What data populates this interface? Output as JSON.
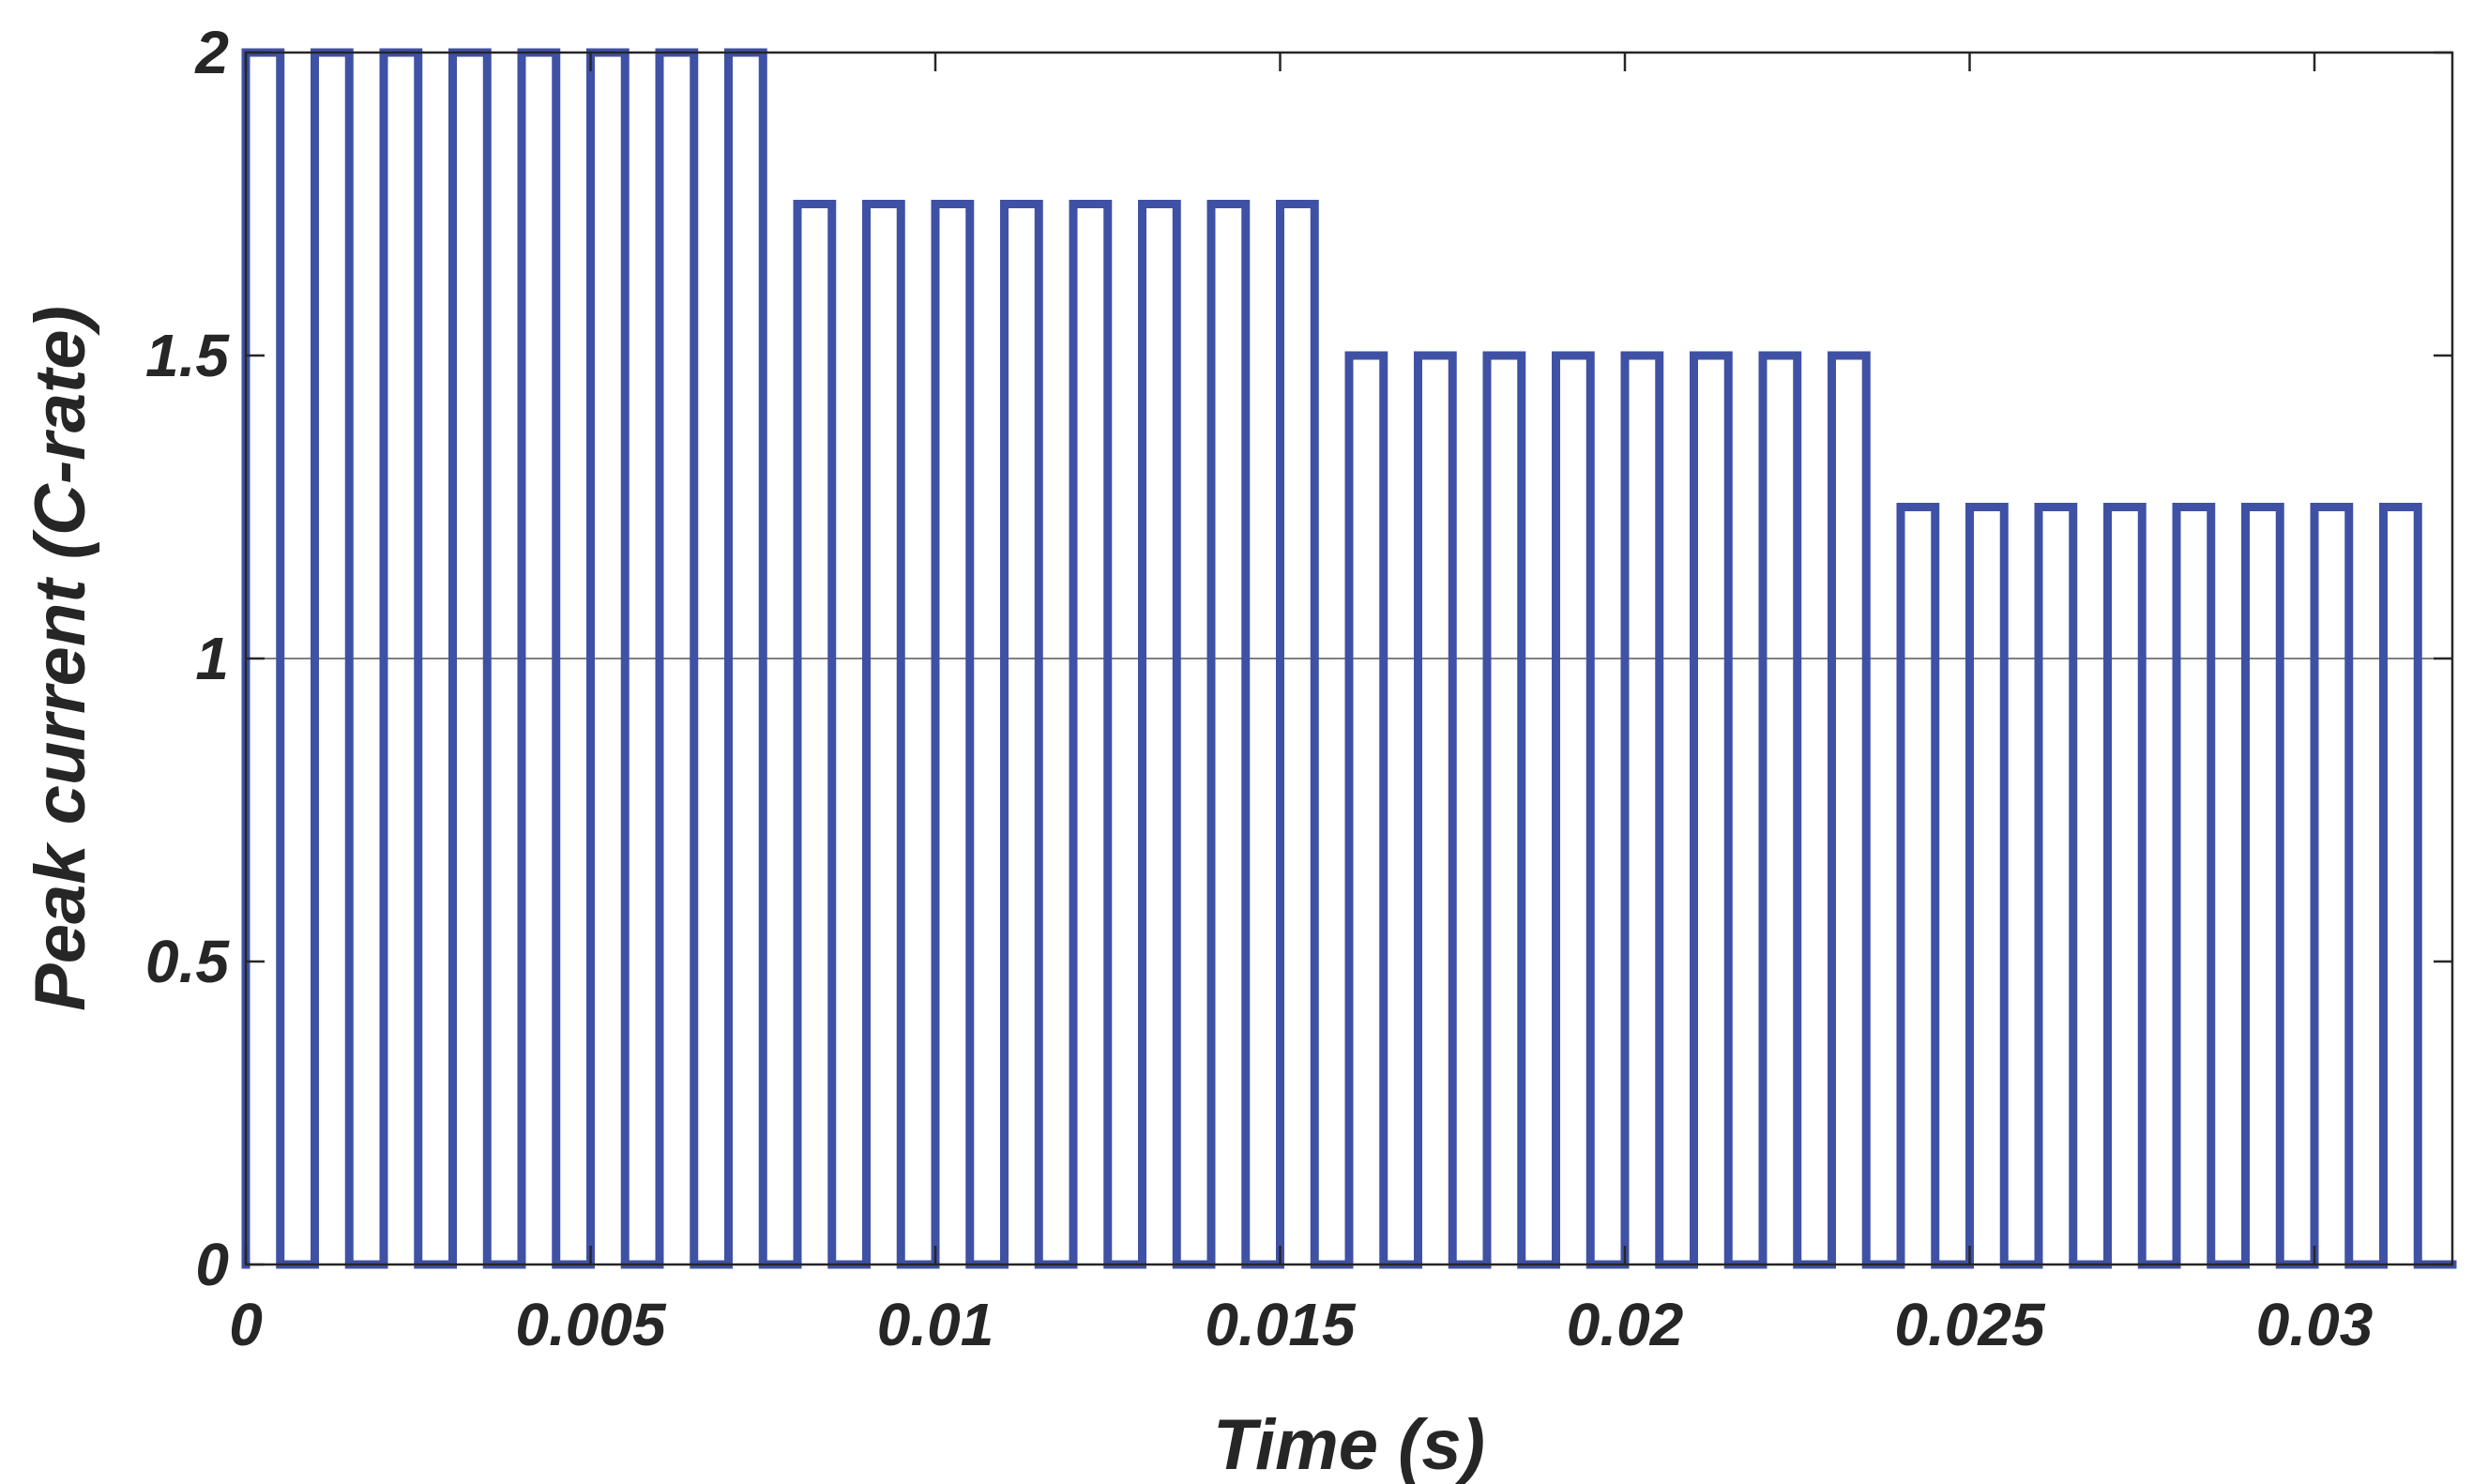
{
  "chart_data": {
    "type": "line",
    "title": "",
    "xlabel": "Time (s)",
    "ylabel": "Peak current (C-rate)",
    "xlim": [
      0,
      0.032
    ],
    "ylim": [
      0,
      2
    ],
    "xticks": [
      0,
      0.005,
      0.01,
      0.015,
      0.02,
      0.025,
      0.03
    ],
    "xtick_labels": [
      "0",
      "0.005",
      "0.01",
      "0.015",
      "0.02",
      "0.025",
      "0.03"
    ],
    "yticks": [
      0,
      0.5,
      1,
      1.5,
      2
    ],
    "ytick_labels": [
      "0",
      "0.5",
      "1",
      "1.5",
      "2"
    ],
    "grid": false,
    "reference_line": {
      "y": 1
    },
    "series": [
      {
        "color": "#3f51a5",
        "description": "pulse train, period 0.001 s, 50% duty, amplitude stepping down every 8 pulses",
        "period": 0.001,
        "duty": 0.5,
        "segments": [
          {
            "start": 0.0,
            "pulses": 8,
            "amplitude": 2.0
          },
          {
            "start": 0.008,
            "pulses": 8,
            "amplitude": 1.75
          },
          {
            "start": 0.016,
            "pulses": 8,
            "amplitude": 1.5
          },
          {
            "start": 0.024,
            "pulses": 8,
            "amplitude": 1.25
          }
        ]
      }
    ]
  }
}
